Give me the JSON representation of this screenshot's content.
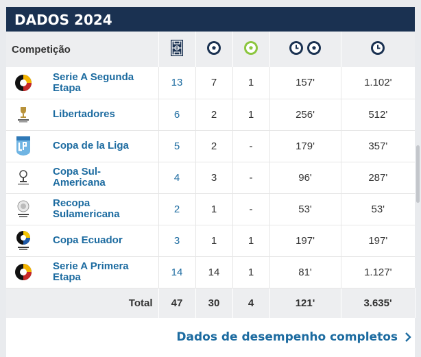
{
  "header": {
    "title": "DADOS 2024"
  },
  "table": {
    "competition_header": "Competição",
    "column_icons": [
      "field-icon",
      "ball-icon",
      "green-ball-icon",
      "clock-ball-icon",
      "clock-icon"
    ],
    "rows": [
      {
        "logo": "ligapro-logo",
        "name": "Serie A Segunda Etapa",
        "games": "13",
        "goals": "7",
        "assists": "1",
        "min_per_goal": "157'",
        "minutes": "1.102'"
      },
      {
        "logo": "libertadores-logo",
        "name": "Libertadores",
        "games": "6",
        "goals": "2",
        "assists": "1",
        "min_per_goal": "256'",
        "minutes": "512'"
      },
      {
        "logo": "lpf-logo",
        "name": "Copa de la Liga",
        "games": "5",
        "goals": "2",
        "assists": "-",
        "min_per_goal": "179'",
        "minutes": "357'"
      },
      {
        "logo": "sudamericana-logo",
        "name": "Copa Sul-Americana",
        "games": "4",
        "goals": "3",
        "assists": "-",
        "min_per_goal": "96'",
        "minutes": "287'"
      },
      {
        "logo": "recopa-logo",
        "name": "Recopa Sulamericana",
        "games": "2",
        "goals": "1",
        "assists": "-",
        "min_per_goal": "53'",
        "minutes": "53'"
      },
      {
        "logo": "copa-ecuador-logo",
        "name": "Copa Ecuador",
        "games": "3",
        "goals": "1",
        "assists": "1",
        "min_per_goal": "197'",
        "minutes": "197'"
      },
      {
        "logo": "ligapro-logo",
        "name": "Serie A Primera Etapa",
        "games": "14",
        "goals": "14",
        "assists": "1",
        "min_per_goal": "81'",
        "minutes": "1.127'"
      }
    ],
    "total": {
      "label": "Total",
      "games": "47",
      "goals": "30",
      "assists": "4",
      "min_per_goal": "121'",
      "minutes": "3.635'"
    }
  },
  "footer": {
    "link_label": "Dados de desempenho completos"
  },
  "colors": {
    "header_bg": "#1a3151",
    "link": "#1c6ba0",
    "assist_green": "#8cc63f"
  }
}
